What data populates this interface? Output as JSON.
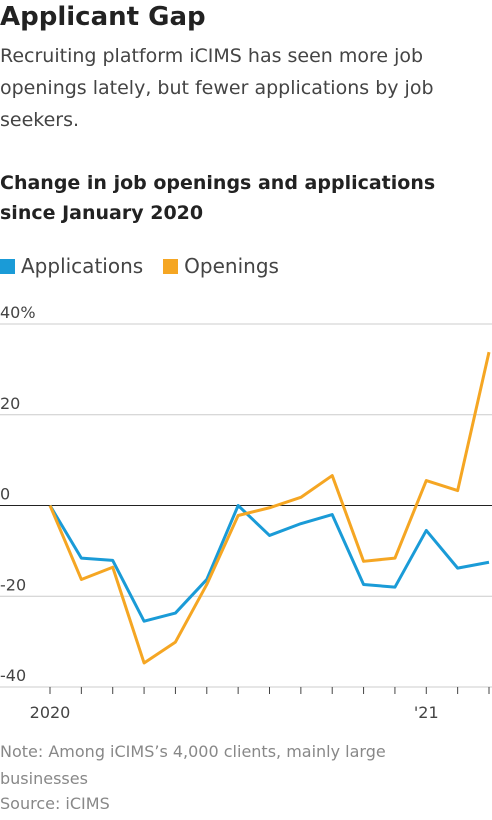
{
  "chart_data": {
    "type": "line",
    "title": "Applicant Gap",
    "subtitle": "Recruiting platform iCIMS has seen more job openings lately, but fewer applications by job seekers.",
    "chart_title": "Change in job openings and applications since January 2020",
    "note": "Note: Among iCIMS’s 4,000 clients, mainly large businesses",
    "source": "Source: iCIMS",
    "categories": [
      "2020",
      null,
      null,
      null,
      null,
      null,
      null,
      null,
      null,
      null,
      null,
      null,
      "'21",
      null,
      null
    ],
    "series": [
      {
        "name": "Applications",
        "color": "#1a9bd7",
        "values": [
          0,
          -11.6,
          -12.1,
          -25.5,
          -23.7,
          -16.3,
          0,
          -6.6,
          -4,
          -2,
          -17.4,
          -18,
          -5.5,
          -13.8,
          -12.5
        ]
      },
      {
        "name": "Openings",
        "color": "#f5a623",
        "values": [
          0,
          -16.3,
          -13.6,
          -34.7,
          -30.1,
          -17.4,
          -2.2,
          -0.5,
          1.8,
          6.6,
          -12.3,
          -11.6,
          5.5,
          3.3,
          33.8
        ]
      }
    ],
    "ylim": [
      -40,
      40
    ],
    "yticks": [
      {
        "value": 40,
        "label": "40%"
      },
      20,
      0,
      -20,
      -40
    ],
    "grid": true
  }
}
